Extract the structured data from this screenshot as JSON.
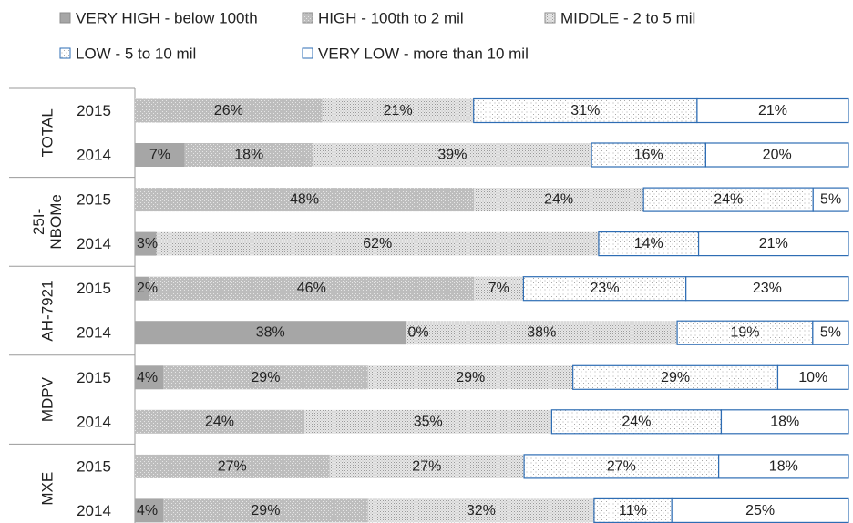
{
  "chart_data": {
    "type": "bar",
    "stacked": true,
    "orientation": "horizontal",
    "percent_stacked": true,
    "legend_position": "top",
    "grid": false,
    "legend": [
      {
        "name": "VERY HIGH - below 100th",
        "color": "#a6a6a6",
        "pattern": "solid"
      },
      {
        "name": "HIGH - 100th to 2 mil",
        "color": "#bdbdbd",
        "pattern": "dots"
      },
      {
        "name": "MIDDLE - 2 to 5 mil",
        "color": "#e0e0e0",
        "pattern": "fine-dots"
      },
      {
        "name": "LOW - 5 to 10 mil",
        "color": "#ffffff",
        "pattern": "light-dots",
        "border": "#2e6db4"
      },
      {
        "name": "VERY LOW - more than 10 mil",
        "color": "#ffffff",
        "pattern": "none",
        "border": "#2e6db4"
      }
    ],
    "groups": [
      {
        "label": "TOTAL",
        "rows": [
          {
            "year": "2015",
            "values": [
              0,
              26,
              21,
              31,
              21
            ],
            "labels": [
              "",
              "26%",
              "21%",
              "31%",
              "21%"
            ]
          },
          {
            "year": "2014",
            "values": [
              7,
              18,
              39,
              16,
              20
            ],
            "labels": [
              "7%",
              "18%",
              "39%",
              "16%",
              "20%"
            ]
          }
        ]
      },
      {
        "label": "25I-NBOMe",
        "label_lines": [
          "25I-",
          "NBOMe"
        ],
        "rows": [
          {
            "year": "2015",
            "values": [
              0,
              48,
              24,
              24,
              5
            ],
            "labels": [
              "",
              "48%",
              "24%",
              "24%",
              "5%"
            ]
          },
          {
            "year": "2014",
            "values": [
              3,
              0,
              62,
              14,
              21
            ],
            "labels": [
              "3%",
              "",
              "62%",
              "14%",
              "21%"
            ]
          }
        ]
      },
      {
        "label": "AH-7921",
        "rows": [
          {
            "year": "2015",
            "values": [
              2,
              46,
              7,
              23,
              23
            ],
            "labels": [
              "2%",
              "46%",
              "7%",
              "23%",
              "23%"
            ]
          },
          {
            "year": "2014",
            "values": [
              38,
              0,
              38,
              19,
              5
            ],
            "labels": [
              "38%",
              "0%",
              "38%",
              "19%",
              "5%"
            ]
          }
        ]
      },
      {
        "label": "MDPV",
        "rows": [
          {
            "year": "2015",
            "values": [
              4,
              29,
              29,
              29,
              10
            ],
            "labels": [
              "4%",
              "29%",
              "29%",
              "29%",
              "10%"
            ]
          },
          {
            "year": "2014",
            "values": [
              0,
              24,
              35,
              24,
              18
            ],
            "labels": [
              "",
              "24%",
              "35%",
              "24%",
              "18%"
            ]
          }
        ]
      },
      {
        "label": "MXE",
        "rows": [
          {
            "year": "2015",
            "values": [
              0,
              27,
              27,
              27,
              18
            ],
            "labels": [
              "",
              "27%",
              "27%",
              "27%",
              "18%"
            ]
          },
          {
            "year": "2014",
            "values": [
              4,
              29,
              32,
              11,
              25
            ],
            "labels": [
              "4%",
              "29%",
              "32%",
              "11%",
              "25%"
            ]
          }
        ]
      }
    ]
  }
}
